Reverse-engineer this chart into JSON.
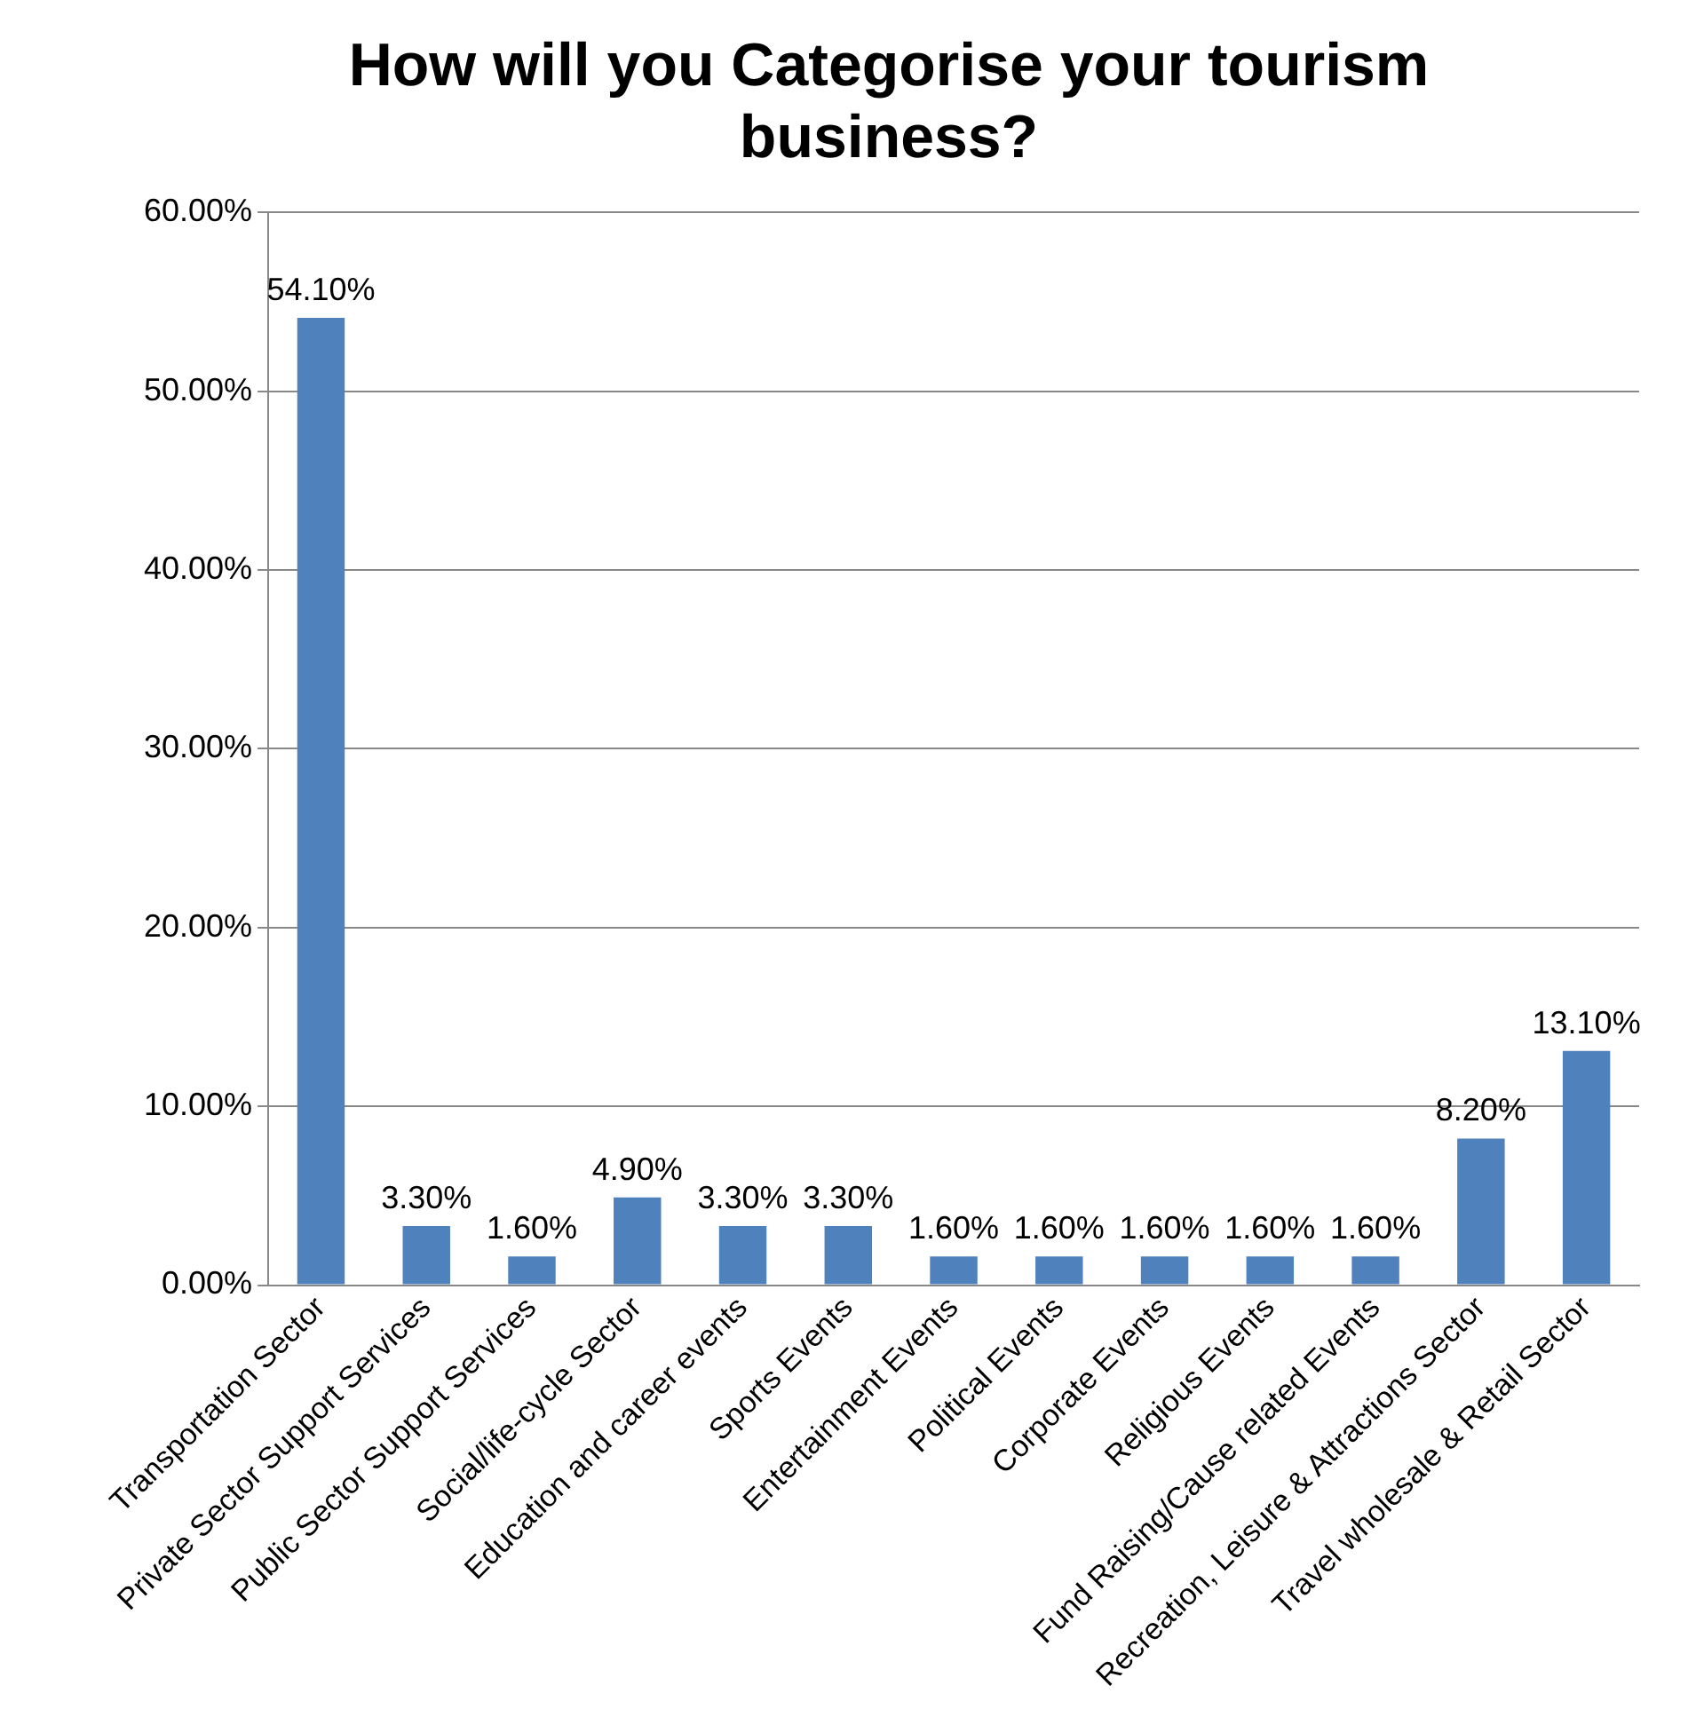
{
  "chart_data": {
    "type": "bar",
    "title": "How will you Categorise your tourism business?",
    "categories": [
      "Transportation Sector",
      "Private Sector Support Services",
      "Public Sector Support Services",
      "Social/life-cycle Sector",
      "Education and career events",
      "Sports Events",
      "Entertainment Events",
      "Political Events",
      "Corporate Events",
      "Religious Events",
      "Fund Raising/Cause related Events",
      "Recreation, Leisure & Attractions Sector",
      "Travel wholesale & Retail Sector"
    ],
    "values": [
      54.1,
      3.3,
      1.6,
      4.9,
      3.3,
      3.3,
      1.6,
      1.6,
      1.6,
      1.6,
      1.6,
      8.2,
      13.1
    ],
    "value_labels": [
      "54.10%",
      "3.30%",
      "1.60%",
      "4.90%",
      "3.30%",
      "3.30%",
      "1.60%",
      "1.60%",
      "1.60%",
      "1.60%",
      "1.60%",
      "8.20%",
      "13.10%"
    ],
    "color": "#4f81bd",
    "ylim": [
      0,
      60
    ],
    "yticks": [
      {
        "value": 0,
        "label": "0.00%"
      },
      {
        "value": 10,
        "label": "10.00%"
      },
      {
        "value": 20,
        "label": "20.00%"
      },
      {
        "value": 30,
        "label": "30.00%"
      },
      {
        "value": 40,
        "label": "40.00%"
      },
      {
        "value": 50,
        "label": "50.00%"
      },
      {
        "value": 60,
        "label": "60.00%"
      }
    ],
    "grid": "y",
    "legend": false
  }
}
